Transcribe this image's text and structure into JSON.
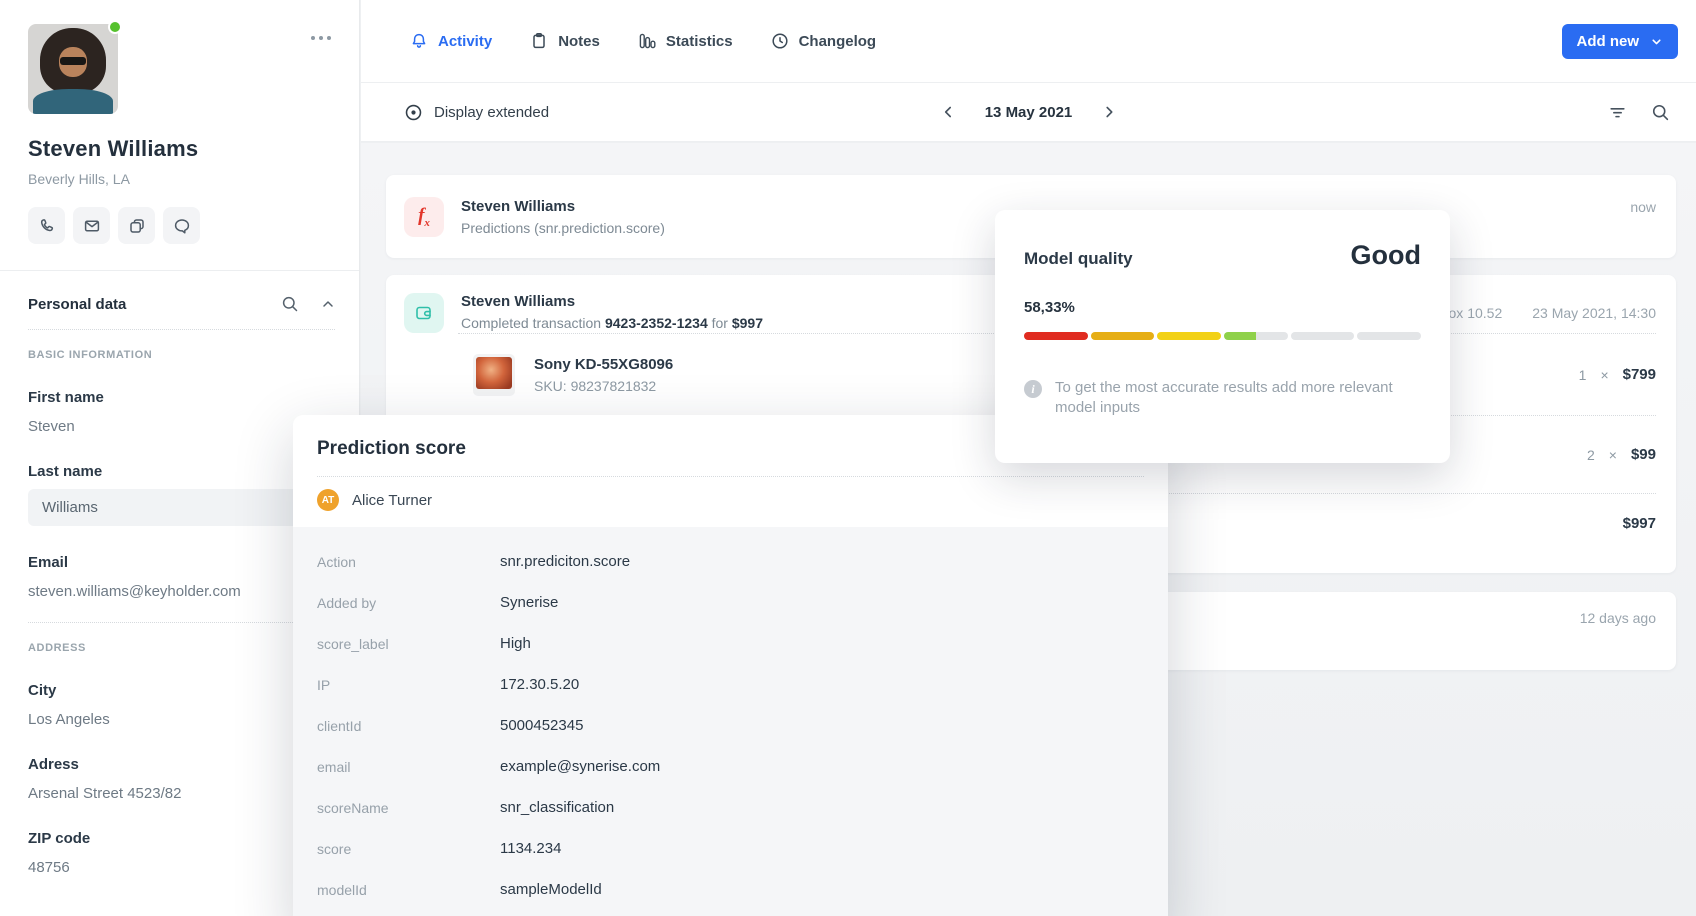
{
  "sidebar": {
    "name": "Steven Williams",
    "location": "Beverly Hills, LA",
    "personal_data": {
      "title": "Personal data",
      "basic_heading": "BASIC INFORMATION",
      "fields_basic": [
        {
          "label": "First name",
          "value": "Steven"
        },
        {
          "label": "Last name",
          "value": "Williams"
        },
        {
          "label": "Email",
          "value": "steven.williams@keyholder.com"
        }
      ],
      "address_heading": "ADDRESS",
      "fields_address": [
        {
          "label": "City",
          "value": "Los Angeles"
        },
        {
          "label": "Adress",
          "value": "Arsenal Street 4523/82"
        },
        {
          "label": "ZIP code",
          "value": "48756"
        }
      ]
    }
  },
  "header": {
    "tabs": [
      {
        "label": "Activity",
        "active": true
      },
      {
        "label": "Notes",
        "active": false
      },
      {
        "label": "Statistics",
        "active": false
      },
      {
        "label": "Changelog",
        "active": false
      }
    ],
    "add_new_label": "Add new"
  },
  "toolbar": {
    "display_extended_label": "Display extended",
    "date": "13 May 2021"
  },
  "feed": {
    "card1": {
      "title": "Steven Williams",
      "subtitle": "Predictions (snr.prediction.score)",
      "timestamp": "now"
    },
    "card2": {
      "title": "Steven Williams",
      "subtitle_prefix": "Completed transaction",
      "transaction_id": "9423-2352-1234",
      "subtitle_middle": "for",
      "amount": "$997",
      "browser_fragment": "ox 10.52",
      "timestamp": "23 May 2021, 14:30",
      "items": [
        {
          "name": "Sony KD-55XG8096",
          "sku": "SKU: 98237821832",
          "qty": "1",
          "times": "×",
          "price": "$799"
        },
        {
          "qty": "2",
          "times": "×",
          "price": "$99"
        }
      ],
      "total": "$997"
    },
    "card3": {
      "timestamp": "12 days ago"
    }
  },
  "model_quality": {
    "title": "Model quality",
    "rating": "Good",
    "percent": "58,33%",
    "info": "To get the most accurate results add more relevant model inputs",
    "bar": {
      "empty_color": "#e3e5e7",
      "segments": [
        {
          "color": "#e02b20",
          "fill": 1
        },
        {
          "color": "#e6ae15",
          "fill": 1
        },
        {
          "color": "#f2d116",
          "fill": 1
        },
        {
          "color": "#8fd14a",
          "fill": 0.5
        },
        {
          "color": "#e3e5e7",
          "fill": 0
        },
        {
          "color": "#e3e5e7",
          "fill": 0
        }
      ]
    }
  },
  "prediction_modal": {
    "title": "Prediction score",
    "user": {
      "initials": "AT",
      "name": "Alice Turner",
      "avatar_color": "#efa22c"
    },
    "rows": [
      {
        "label": "Action",
        "value": "snr.prediciton.score"
      },
      {
        "label": "Added by",
        "value": "Synerise"
      },
      {
        "label": "score_label",
        "value": "High"
      },
      {
        "label": "IP",
        "value": "172.30.5.20"
      },
      {
        "label": "clientId",
        "value": "5000452345"
      },
      {
        "label": "email",
        "value": "example@synerise.com"
      },
      {
        "label": "scoreName",
        "value": "snr_classification"
      },
      {
        "label": "score",
        "value": "1134.234"
      },
      {
        "label": "modelId",
        "value": "sampleModelId"
      }
    ]
  },
  "colors": {
    "accent_blue": "#2a6cf2",
    "online_green": "#55c12d",
    "fx_red": "#e2362b",
    "wallet_teal": "#2fbfa9"
  },
  "icons": {
    "tabs": [
      "bell-icon",
      "clipboard-icon",
      "bar-chart-icon",
      "clock-icon"
    ],
    "toolbar": [
      "eye-icon",
      "chevron-left-icon",
      "chevron-right-icon",
      "filter-icon",
      "search-icon"
    ],
    "quick_actions": [
      "phone-icon",
      "mail-icon",
      "cards-icon",
      "chat-icon"
    ],
    "misc": [
      "kebab-menu-icon",
      "search-icon",
      "chevron-up-icon",
      "chevron-down-icon",
      "info-icon",
      "function-icon",
      "wallet-icon"
    ]
  }
}
